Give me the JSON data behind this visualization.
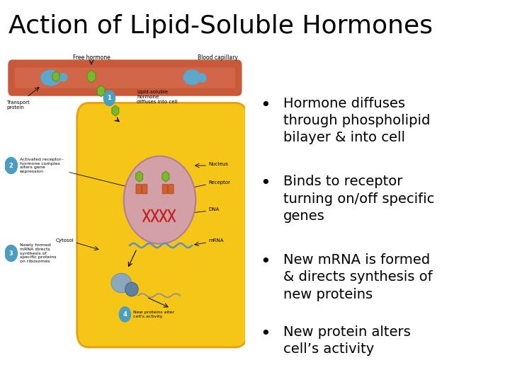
{
  "title": "Action of Lipid-Soluble Hormones",
  "title_fontsize": 26,
  "title_color": "#000000",
  "background_color": "#ffffff",
  "bullet_points": [
    "Hormone diffuses\nthrough phospholipid\nbilayer & into cell",
    "Binds to receptor\nturning on/off specific\ngenes",
    "New mRNA is formed\n& directs synthesis of\nnew proteins",
    "New protein alters\ncell’s activity"
  ],
  "bullet_fontsize": 14,
  "bullet_color": "#000000",
  "capillary_color": "#C85A3A",
  "capillary_light": "#D97055",
  "cell_fill": "#F5C518",
  "cell_edge": "#E8A010",
  "nucleus_fill": "#D4A0A8",
  "nucleus_edge": "#B08090",
  "blue_circle": "#4A9EC0",
  "hormone_green": "#78B830",
  "hormone_edge": "#559010",
  "receptor_fill": "#D06030",
  "receptor_edge": "#A04010",
  "dna_color": "#C02020",
  "mrna_color": "#6090C0",
  "ribosome_fill": "#8AAABB",
  "ribosome_fill2": "#6080A0"
}
